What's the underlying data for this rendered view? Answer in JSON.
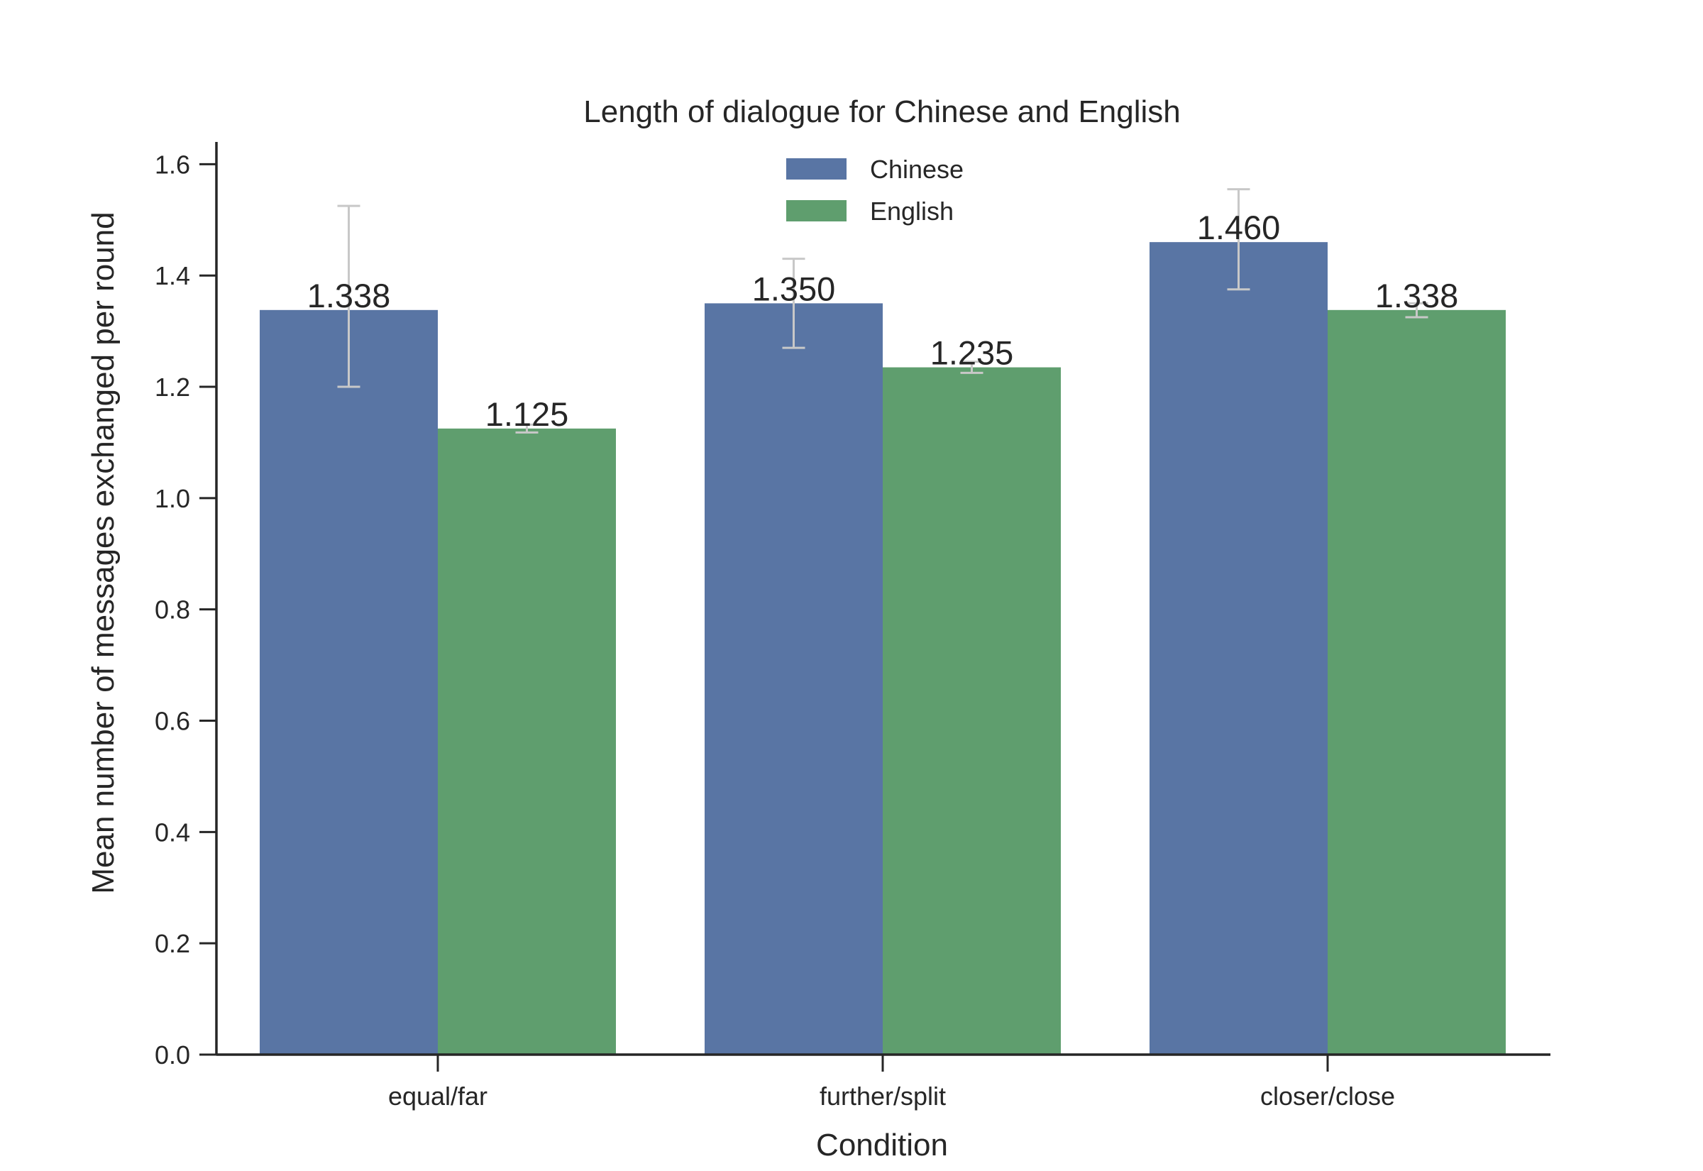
{
  "chart_data": {
    "type": "bar",
    "title": "Length of dialogue for Chinese and English",
    "xlabel": "Condition",
    "ylabel": "Mean number of messages exchanged per round",
    "categories": [
      "equal/far",
      "further/split",
      "closer/close"
    ],
    "ylim": [
      0,
      1.64
    ],
    "yticks": [
      0.0,
      0.2,
      0.4,
      0.6,
      0.8,
      1.0,
      1.2,
      1.4,
      1.6
    ],
    "ytick_labels": [
      "0.0",
      "0.2",
      "0.4",
      "0.6",
      "0.8",
      "1.0",
      "1.2",
      "1.4",
      "1.6"
    ],
    "grid": false,
    "legend_position": "top-center",
    "series": [
      {
        "name": "Chinese",
        "color": "#5975a4",
        "values": [
          1.338,
          1.35,
          1.46
        ],
        "value_labels": [
          "1.338",
          "1.350",
          "1.460"
        ],
        "error_low": [
          1.2,
          1.27,
          1.375
        ],
        "error_high": [
          1.525,
          1.43,
          1.555
        ]
      },
      {
        "name": "English",
        "color": "#5f9e6e",
        "values": [
          1.125,
          1.235,
          1.338
        ],
        "value_labels": [
          "1.125",
          "1.235",
          "1.338"
        ],
        "error_low": [
          1.118,
          1.225,
          1.325
        ],
        "error_high": [
          1.132,
          1.245,
          1.35
        ]
      }
    ],
    "error_bar_color": "#c8c8c8",
    "axis_color": "#262626"
  }
}
